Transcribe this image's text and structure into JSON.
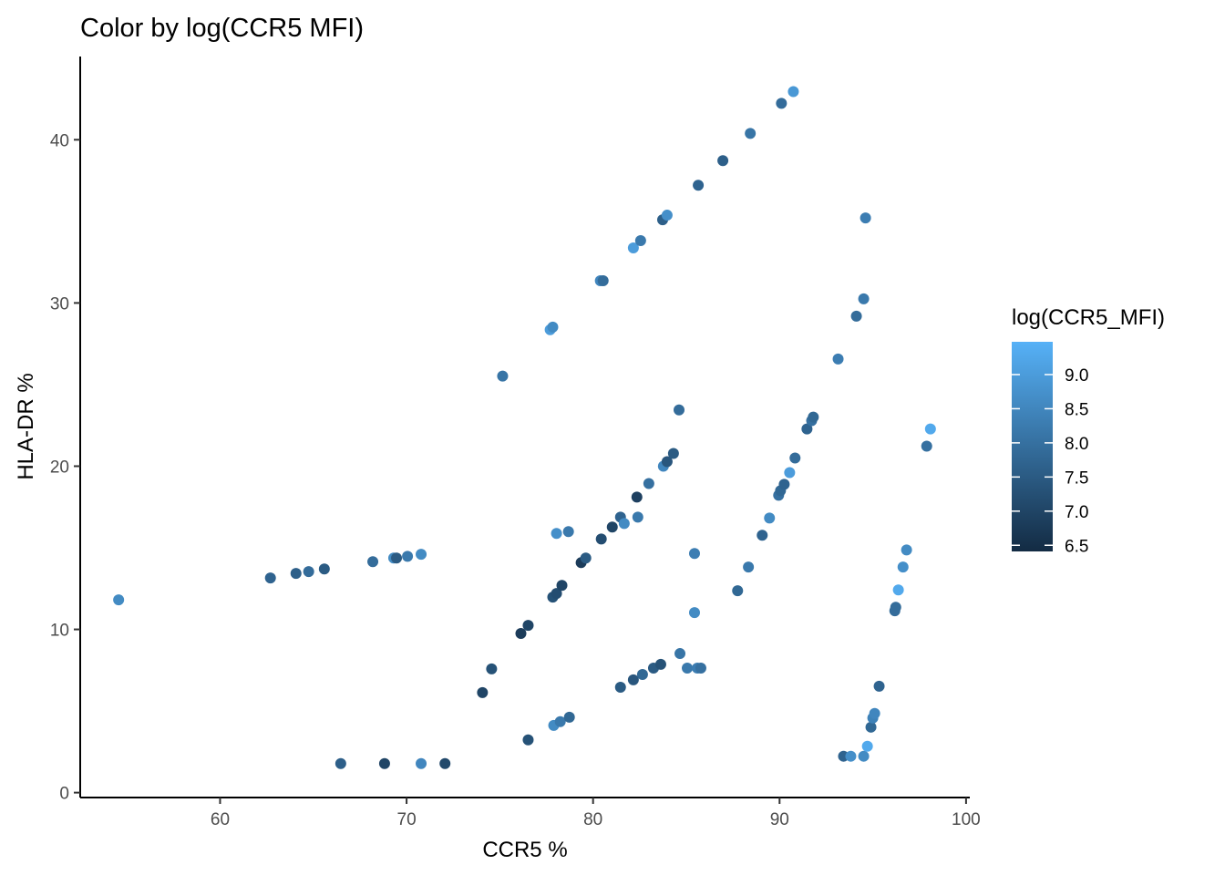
{
  "chart_data": {
    "type": "scatter",
    "title": "Color by log(CCR5 MFI)",
    "xlabel": "CCR5 %",
    "ylabel": "HLA-DR %",
    "xlim": [
      52.5,
      100.2
    ],
    "ylim": [
      -0.3,
      45.1
    ],
    "x_ticks": [
      60,
      70,
      80,
      90,
      100
    ],
    "y_ticks": [
      0,
      10,
      20,
      30,
      40
    ],
    "grid": false,
    "legend": {
      "title": "log(CCR5_MFI)",
      "placement": "right",
      "ticks": [
        "6.5",
        "7.0",
        "7.5",
        "8.0",
        "8.5",
        "9.0"
      ],
      "color_range": [
        6.41,
        9.48
      ],
      "low_color": "#132B43",
      "high_color": "#56B1F7"
    },
    "points": [
      [
        54.56,
        11.81,
        8.6
      ],
      [
        62.7,
        13.15,
        7.7
      ],
      [
        64.07,
        13.43,
        7.6
      ],
      [
        64.75,
        13.54,
        7.9
      ],
      [
        65.59,
        13.7,
        7.5
      ],
      [
        68.19,
        14.15,
        7.9
      ],
      [
        69.31,
        14.37,
        8.6
      ],
      [
        69.46,
        14.37,
        7.5
      ],
      [
        70.05,
        14.48,
        8.2
      ],
      [
        70.78,
        14.6,
        8.6
      ],
      [
        66.47,
        1.78,
        7.6
      ],
      [
        68.82,
        1.78,
        7.0
      ],
      [
        70.78,
        1.78,
        8.5
      ],
      [
        72.06,
        1.78,
        7.1
      ],
      [
        74.07,
        6.13,
        7.0
      ],
      [
        74.56,
        7.58,
        7.3
      ],
      [
        76.13,
        9.75,
        6.8
      ],
      [
        76.52,
        10.25,
        7.0
      ],
      [
        76.52,
        3.23,
        7.3
      ],
      [
        77.84,
        11.98,
        7.3
      ],
      [
        78.04,
        12.2,
        7.2
      ],
      [
        78.33,
        12.7,
        7.0
      ],
      [
        79.36,
        14.09,
        6.8
      ],
      [
        79.61,
        14.37,
        7.5
      ],
      [
        80.44,
        15.54,
        7.2
      ],
      [
        81.03,
        16.27,
        7.0
      ],
      [
        81.47,
        16.88,
        7.7
      ],
      [
        81.67,
        16.49,
        8.6
      ],
      [
        82.35,
        18.11,
        6.9
      ],
      [
        82.4,
        16.88,
        8.2
      ],
      [
        82.99,
        18.94,
        8.0
      ],
      [
        83.77,
        20.0,
        8.5
      ],
      [
        83.97,
        20.28,
        7.4
      ],
      [
        84.31,
        20.78,
        7.5
      ],
      [
        84.61,
        23.45,
        7.9
      ],
      [
        78.04,
        15.88,
        8.7
      ],
      [
        78.68,
        15.99,
        8.2
      ],
      [
        75.15,
        25.52,
        8.1
      ],
      [
        77.7,
        28.36,
        9.0
      ],
      [
        77.84,
        28.52,
        8.6
      ],
      [
        80.39,
        31.36,
        8.5
      ],
      [
        80.54,
        31.36,
        7.9
      ],
      [
        82.16,
        33.37,
        9.0
      ],
      [
        82.55,
        33.82,
        8.2
      ],
      [
        83.73,
        35.1,
        7.6
      ],
      [
        83.97,
        35.38,
        8.7
      ],
      [
        85.64,
        37.21,
        7.7
      ],
      [
        86.96,
        38.72,
        7.6
      ],
      [
        88.43,
        40.39,
        8.1
      ],
      [
        90.1,
        42.23,
        7.9
      ],
      [
        90.74,
        42.95,
        8.9
      ],
      [
        77.89,
        4.12,
        8.6
      ],
      [
        78.24,
        4.35,
        8.2
      ],
      [
        78.73,
        4.62,
        7.8
      ],
      [
        81.47,
        6.46,
        7.5
      ],
      [
        82.16,
        6.91,
        7.4
      ],
      [
        82.65,
        7.24,
        7.8
      ],
      [
        83.24,
        7.63,
        7.5
      ],
      [
        83.63,
        7.86,
        7.3
      ],
      [
        84.66,
        8.52,
        8.1
      ],
      [
        85.05,
        7.63,
        8.2
      ],
      [
        85.59,
        7.63,
        8.3
      ],
      [
        85.78,
        7.63,
        8.0
      ],
      [
        85.44,
        11.03,
        8.6
      ],
      [
        85.44,
        14.65,
        8.3
      ],
      [
        87.75,
        12.37,
        7.8
      ],
      [
        88.33,
        13.82,
        8.2
      ],
      [
        89.07,
        15.77,
        7.7
      ],
      [
        89.46,
        16.82,
        8.6
      ],
      [
        89.95,
        18.22,
        8.0
      ],
      [
        90.05,
        18.5,
        7.8
      ],
      [
        90.25,
        18.89,
        7.7
      ],
      [
        90.54,
        19.61,
        9.0
      ],
      [
        90.83,
        20.5,
        7.9
      ],
      [
        91.47,
        22.28,
        7.7
      ],
      [
        91.72,
        22.79,
        8.0
      ],
      [
        91.81,
        23.01,
        7.8
      ],
      [
        93.14,
        26.57,
        8.3
      ],
      [
        94.12,
        29.19,
        7.9
      ],
      [
        94.51,
        30.25,
        8.2
      ],
      [
        94.61,
        35.21,
        8.3
      ],
      [
        93.43,
        2.23,
        7.7
      ],
      [
        93.82,
        2.23,
        8.7
      ],
      [
        94.51,
        2.23,
        8.6
      ],
      [
        94.71,
        2.84,
        9.3
      ],
      [
        94.9,
        4.01,
        7.8
      ],
      [
        95.0,
        4.57,
        8.4
      ],
      [
        95.1,
        4.85,
        8.5
      ],
      [
        95.34,
        6.52,
        7.7
      ],
      [
        96.18,
        11.14,
        7.9
      ],
      [
        96.23,
        11.36,
        7.9
      ],
      [
        96.37,
        12.42,
        9.3
      ],
      [
        96.62,
        13.82,
        8.7
      ],
      [
        96.81,
        14.87,
        8.6
      ],
      [
        97.89,
        21.23,
        8.0
      ],
      [
        98.09,
        22.28,
        9.3
      ]
    ]
  }
}
